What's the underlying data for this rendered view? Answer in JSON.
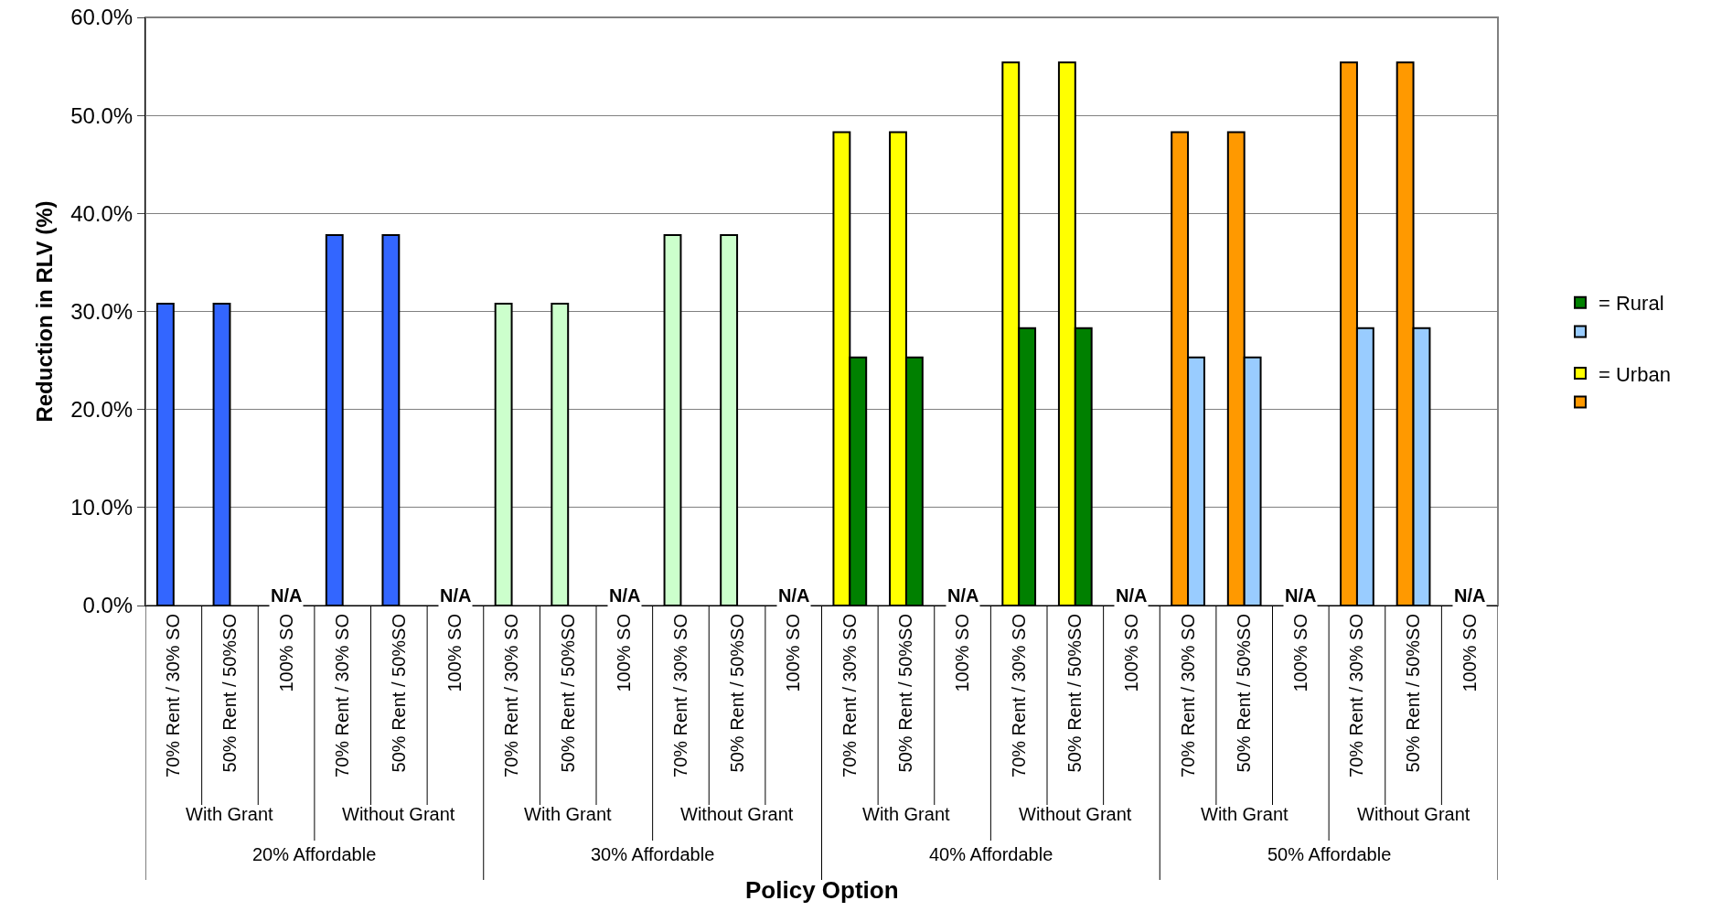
{
  "chart_data": {
    "type": "bar",
    "ylabel": "Reduction in RLV (%)",
    "xlabel": "Policy Option",
    "categories": [
      "70% Rent / 30% SO",
      "50% Rent / 50%SO",
      "100% SO",
      "70% Rent / 30% SO",
      "50% Rent / 50%SO",
      "100% SO",
      "70% Rent / 30% SO",
      "50% Rent / 50%SO",
      "100% SO",
      "70% Rent / 30% SO",
      "50% Rent / 50%SO",
      "100% SO",
      "70% Rent / 30% SO",
      "50% Rent / 50%SO",
      "100% SO",
      "70% Rent / 30% SO",
      "50% Rent / 50%SO",
      "100% SO",
      "70% Rent / 30% SO",
      "50% Rent / 50%SO",
      "100% SO",
      "70% Rent / 30% SO",
      "50% Rent / 50%SO",
      "100% SO"
    ],
    "series": [
      {
        "colors": [
          "#3366ff",
          "#3366ff",
          null,
          "#3366ff",
          "#3366ff",
          null,
          "#ccffcc",
          "#ccffcc",
          null,
          "#ccffcc",
          "#ccffcc",
          null,
          null,
          null,
          null,
          null,
          null,
          null,
          null,
          null,
          null,
          null,
          null,
          null
        ],
        "values": [
          30.8,
          30.8,
          null,
          37.8,
          37.8,
          null,
          30.8,
          30.8,
          null,
          37.8,
          37.8,
          null,
          null,
          null,
          null,
          null,
          null,
          null,
          null,
          null,
          null,
          null,
          null,
          null
        ],
        "value_labels": [
          null,
          null,
          "N/A",
          null,
          null,
          "N/A",
          null,
          null,
          "N/A",
          null,
          null,
          "N/A",
          null,
          null,
          null,
          null,
          null,
          null,
          null,
          null,
          null,
          null,
          null,
          null
        ]
      },
      {
        "name": "= Urban",
        "colors": [
          null,
          null,
          null,
          null,
          null,
          null,
          null,
          null,
          null,
          null,
          null,
          null,
          "#ffff00",
          "#ffff00",
          null,
          "#ffff00",
          "#ffff00",
          null,
          "#ff9900",
          "#ff9900",
          null,
          "#ff9900",
          "#ff9900",
          null
        ],
        "values": [
          null,
          null,
          null,
          null,
          null,
          null,
          null,
          null,
          null,
          null,
          null,
          null,
          48.3,
          48.3,
          null,
          55.4,
          55.4,
          null,
          48.3,
          48.3,
          null,
          55.4,
          55.4,
          null
        ],
        "value_labels": [
          null,
          null,
          null,
          null,
          null,
          null,
          null,
          null,
          null,
          null,
          null,
          null,
          null,
          null,
          "N/A",
          null,
          null,
          "N/A",
          null,
          null,
          "N/A",
          null,
          null,
          "N/A"
        ]
      },
      {
        "name": "= Rural",
        "colors": [
          null,
          null,
          null,
          null,
          null,
          null,
          null,
          null,
          null,
          null,
          null,
          null,
          "#008000",
          "#008000",
          null,
          "#008000",
          "#008000",
          null,
          "#99ccff",
          "#99ccff",
          null,
          "#99ccff",
          "#99ccff",
          null
        ],
        "values": [
          null,
          null,
          null,
          null,
          null,
          null,
          null,
          null,
          null,
          null,
          null,
          null,
          25.3,
          25.3,
          null,
          28.3,
          28.3,
          null,
          25.3,
          25.3,
          null,
          28.3,
          28.3,
          null
        ]
      }
    ],
    "ylim": [
      0,
      60
    ],
    "yticks": [
      {
        "value": 0,
        "label": "0.0%"
      },
      {
        "value": 10,
        "label": "10.0%"
      },
      {
        "value": 20,
        "label": "20.0%"
      },
      {
        "value": 30,
        "label": "30.0%"
      },
      {
        "value": 40,
        "label": "40.0%"
      },
      {
        "value": 50,
        "label": "50.0%"
      },
      {
        "value": 60,
        "label": "60.0%"
      }
    ],
    "grid": "y",
    "legend": "right",
    "annotations": [
      "With Grant",
      "Without Grant",
      "With Grant",
      "Without Grant",
      "With Grant",
      "Without Grant",
      "With Grant",
      "Without Grant",
      "20% Affordable",
      "30% Affordable",
      "40% Affordable",
      "50% Affordable"
    ]
  }
}
